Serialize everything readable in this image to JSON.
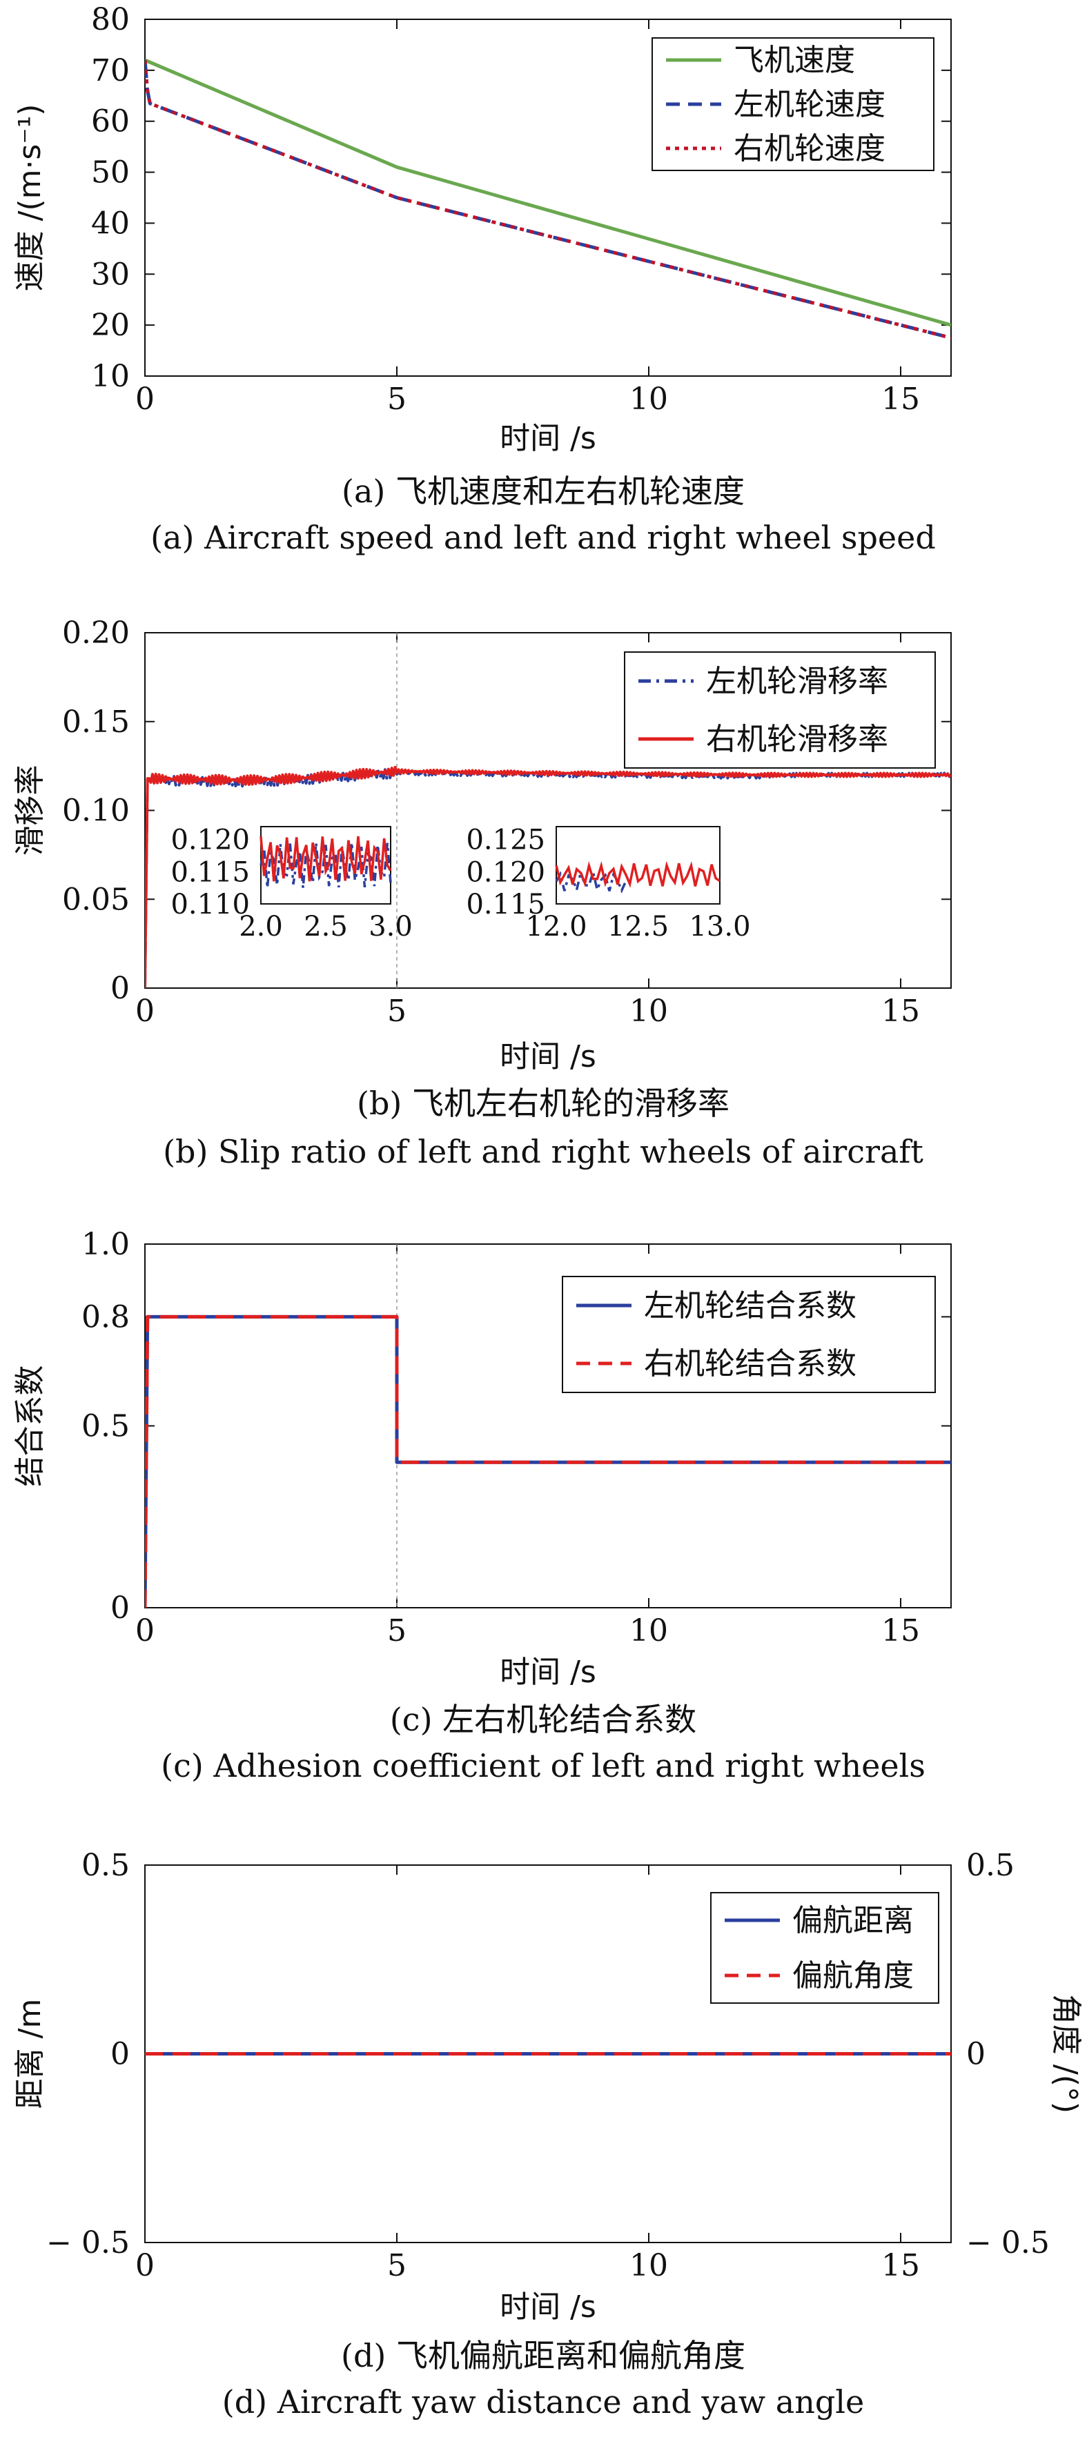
{
  "colors": {
    "green": "#6aa84f",
    "blue": "#2b3f9e",
    "red": "#e02020",
    "darkred": "#c0142a",
    "axis": "#111111",
    "guide": "#9a9a9a"
  },
  "chart_data": [
    {
      "type": "line",
      "panel": "a",
      "caption_cn": "(a) 飞机速度和左右机轮速度",
      "caption_en": "(a) Aircraft speed and left and right wheel speed",
      "xlabel": "时间 /s",
      "ylabel": "速度 /(m·s⁻¹)",
      "xlim": [
        0,
        16
      ],
      "ylim": [
        10,
        80
      ],
      "xticks": [
        "0",
        "5",
        "10",
        "15"
      ],
      "yticks": [
        "10",
        "20",
        "30",
        "40",
        "50",
        "60",
        "70",
        "80"
      ],
      "legend_position": "top-right",
      "series": [
        {
          "name": "飞机速度",
          "color": "#6aa84f",
          "style": "solid",
          "x": [
            0,
            5,
            16
          ],
          "y": [
            72,
            51,
            20
          ]
        },
        {
          "name": "左机轮速度",
          "color": "#2b3f9e",
          "style": "dashed",
          "x": [
            0,
            0.05,
            0.1,
            5,
            16
          ],
          "y": [
            72,
            66,
            63.5,
            45,
            17.5
          ]
        },
        {
          "name": "右机轮速度",
          "color": "#c0142a",
          "style": "dotted",
          "x": [
            0,
            0.05,
            0.1,
            5,
            16
          ],
          "y": [
            72,
            66,
            63.5,
            45,
            17.5
          ]
        }
      ]
    },
    {
      "type": "line",
      "panel": "b",
      "caption_cn": "(b) 飞机左右机轮的滑移率",
      "caption_en": "(b) Slip ratio of left and right wheels of aircraft",
      "xlabel": "时间 /s",
      "ylabel": "滑移率",
      "xlim": [
        0,
        16
      ],
      "ylim": [
        0,
        0.2
      ],
      "xticks": [
        "0",
        "5",
        "10",
        "15"
      ],
      "yticks": [
        "0",
        "0.05",
        "0.10",
        "0.15",
        "0.20"
      ],
      "vline": 5,
      "legend_position": "top-right",
      "series": [
        {
          "name": "左机轮滑移率",
          "color": "#2b3f9e",
          "style": "dashdot",
          "x": [
            0,
            0.05,
            2,
            3,
            5,
            8,
            12,
            13,
            16
          ],
          "y": [
            0,
            0.117,
            0.116,
            0.117,
            0.121,
            0.12,
            0.119,
            0.12,
            0.12
          ]
        },
        {
          "name": "右机轮滑移率",
          "color": "#e02020",
          "style": "solid",
          "x": [
            0,
            0.05,
            2,
            3,
            5,
            8,
            12,
            13,
            16
          ],
          "y": [
            0,
            0.118,
            0.117,
            0.118,
            0.122,
            0.121,
            0.12,
            0.12,
            0.12
          ]
        }
      ],
      "insets": [
        {
          "xlim": [
            2.0,
            3.0
          ],
          "ylim": [
            0.11,
            0.122
          ],
          "xticks": [
            "2.0",
            "2.5",
            "3.0"
          ],
          "yticks": [
            "0.110",
            "0.115",
            "0.120"
          ]
        },
        {
          "xlim": [
            12.0,
            13.0
          ],
          "ylim": [
            0.115,
            0.127
          ],
          "xticks": [
            "12.0",
            "12.5",
            "13.0"
          ],
          "yticks": [
            "0.115",
            "0.120",
            "0.125"
          ]
        }
      ]
    },
    {
      "type": "line",
      "panel": "c",
      "caption_cn": "(c) 左右机轮结合系数",
      "caption_en": "(c) Adhesion coefficient of left and right wheels",
      "xlabel": "时间 /s",
      "ylabel": "结合系数",
      "xlim": [
        0,
        16
      ],
      "ylim": [
        0,
        1.0
      ],
      "xticks": [
        "0",
        "5",
        "10",
        "15"
      ],
      "yticks": [
        "0",
        "0.5",
        "0.8",
        "1.0"
      ],
      "vline": 5,
      "legend_position": "top-right",
      "series": [
        {
          "name": "左机轮结合系数",
          "color": "#2b3f9e",
          "style": "solid",
          "x": [
            0,
            0.05,
            5,
            5,
            16
          ],
          "y": [
            0,
            0.8,
            0.8,
            0.4,
            0.4
          ]
        },
        {
          "name": "右机轮结合系数",
          "color": "#e02020",
          "style": "dashed",
          "x": [
            0,
            0.05,
            5,
            5,
            16
          ],
          "y": [
            0,
            0.8,
            0.8,
            0.4,
            0.4
          ]
        }
      ]
    },
    {
      "type": "line",
      "panel": "d",
      "caption_cn": "(d) 飞机偏航距离和偏航角度",
      "caption_en": "(d) Aircraft yaw distance and yaw angle",
      "xlabel": "时间 /s",
      "ylabel": "距离 /m",
      "ylabel_right": "角度 /(°)",
      "xlim": [
        0,
        16
      ],
      "ylim": [
        -0.5,
        0.5
      ],
      "xticks": [
        "0",
        "5",
        "10",
        "15"
      ],
      "yticks": [
        "− 0.5",
        "0",
        "0.5"
      ],
      "yticks_right": [
        "− 0.5",
        "0",
        "0.5"
      ],
      "legend_position": "top-right",
      "series": [
        {
          "name": "偏航距离",
          "color": "#2b3f9e",
          "style": "solid",
          "x": [
            0,
            16
          ],
          "y": [
            0,
            0
          ]
        },
        {
          "name": "偏航角度",
          "color": "#e02020",
          "style": "dashed",
          "x": [
            0,
            16
          ],
          "y": [
            0,
            0
          ]
        }
      ]
    }
  ]
}
